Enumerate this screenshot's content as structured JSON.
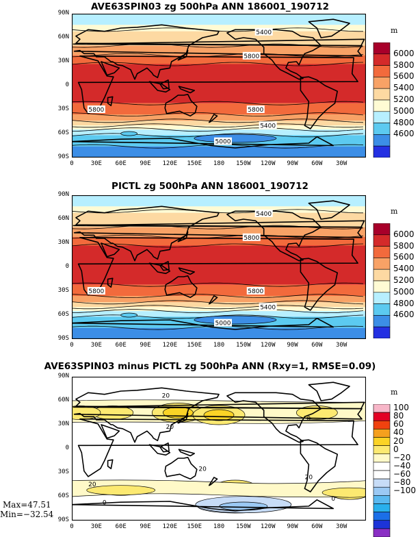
{
  "chart_data": [
    {
      "type": "heatmap",
      "title": "AVE63SPIN03 zg 500hPa ANN 186001_190712",
      "units": "m",
      "x_ticks": [
        "0",
        "30E",
        "60E",
        "90E",
        "120E",
        "150E",
        "180",
        "150W",
        "120W",
        "90W",
        "60W",
        "30W"
      ],
      "y_ticks": [
        "90N",
        "60N",
        "30N",
        "0",
        "30S",
        "60S",
        "90S"
      ],
      "colorbar_levels": [
        "6000",
        "5800",
        "5600",
        "5400",
        "5200",
        "5000",
        "4800",
        "4600"
      ],
      "colorbar_colors": [
        "#a8002a",
        "#d42a2a",
        "#f26a3c",
        "#f8a266",
        "#fdd9a2",
        "#fffbd4",
        "#b7efff",
        "#5ccaf0",
        "#3c8ee6",
        "#2430e2"
      ],
      "contour_labels": [
        "5400",
        "5800",
        "5600",
        "5800",
        "5800",
        "5400",
        "5000"
      ],
      "zonal_band_values": [
        {
          "lat": 80,
          "value": 5250
        },
        {
          "lat": 60,
          "value": 5420
        },
        {
          "lat": 45,
          "value": 5620
        },
        {
          "lat": 30,
          "value": 5800
        },
        {
          "lat": 0,
          "value": 5860
        },
        {
          "lat": -30,
          "value": 5790
        },
        {
          "lat": -45,
          "value": 5560
        },
        {
          "lat": -55,
          "value": 5300
        },
        {
          "lat": -65,
          "value": 5050
        },
        {
          "lat": -80,
          "value": 4900
        }
      ]
    },
    {
      "type": "heatmap",
      "title": "PICTL zg 500hPa ANN 186001_190712",
      "units": "m",
      "x_ticks": [
        "0",
        "30E",
        "60E",
        "90E",
        "120E",
        "150E",
        "180",
        "150W",
        "120W",
        "90W",
        "60W",
        "30W"
      ],
      "y_ticks": [
        "90N",
        "60N",
        "30N",
        "0",
        "30S",
        "60S",
        "90S"
      ],
      "colorbar_levels": [
        "6000",
        "5800",
        "5600",
        "5400",
        "5200",
        "5000",
        "4800",
        "4600"
      ],
      "colorbar_colors": [
        "#a8002a",
        "#d42a2a",
        "#f26a3c",
        "#f8a266",
        "#fdd9a2",
        "#fffbd4",
        "#b7efff",
        "#5ccaf0",
        "#3c8ee6",
        "#2430e2"
      ],
      "contour_labels": [
        "5400",
        "5800",
        "5800",
        "5800",
        "5800",
        "5400",
        "5000"
      ],
      "zonal_band_values": [
        {
          "lat": 80,
          "value": 5250
        },
        {
          "lat": 60,
          "value": 5420
        },
        {
          "lat": 45,
          "value": 5620
        },
        {
          "lat": 30,
          "value": 5800
        },
        {
          "lat": 0,
          "value": 5860
        },
        {
          "lat": -30,
          "value": 5790
        },
        {
          "lat": -45,
          "value": 5560
        },
        {
          "lat": -55,
          "value": 5300
        },
        {
          "lat": -65,
          "value": 5050
        },
        {
          "lat": -80,
          "value": 4900
        }
      ]
    },
    {
      "type": "heatmap",
      "title": "AVE63SPIN03 minus PICTL zg 500hPa ANN (Rxy=1, RMSE=0.09)",
      "units": "m",
      "x_ticks": [
        "0",
        "30E",
        "60E",
        "90E",
        "120E",
        "150E",
        "180",
        "150W",
        "120W",
        "90W",
        "60W",
        "30W"
      ],
      "y_ticks": [
        "90N",
        "60N",
        "30N",
        "0",
        "30S",
        "60S",
        "90S"
      ],
      "colorbar_levels": [
        "100",
        "80",
        "60",
        "40",
        "20",
        "0",
        "−20",
        "−40",
        "−60",
        "−80",
        "−100"
      ],
      "colorbar_colors": [
        "#f7b6c8",
        "#e30024",
        "#f0420f",
        "#f5a01e",
        "#fbd326",
        "#fce971",
        "#fff9c8",
        "#ffffff",
        "#ffffff",
        "#c7dcf7",
        "#9bc9f4",
        "#5ab9f0",
        "#29b0ed",
        "#1b6fe8",
        "#1d34d8",
        "#8a2fc4"
      ],
      "contour_labels": [
        "20",
        "20",
        "0",
        "20",
        "20",
        "20",
        "0",
        "0"
      ],
      "stats": {
        "max": "Max=47.51",
        "min": "Min=−32.54"
      },
      "features": [
        {
          "lon": 50,
          "lat": 45,
          "value": 25
        },
        {
          "lon": 130,
          "lat": 45,
          "value": 35
        },
        {
          "lon": 180,
          "lat": 42,
          "value": 40
        },
        {
          "lon": 10,
          "lat": 45,
          "value": 20
        },
        {
          "lon": 300,
          "lat": 45,
          "value": 20
        },
        {
          "lon": 200,
          "lat": -48,
          "value": 20
        },
        {
          "lon": 60,
          "lat": -50,
          "value": 25
        },
        {
          "lon": 340,
          "lat": -55,
          "value": 25
        },
        {
          "lon": 200,
          "lat": -72,
          "value": -30
        }
      ]
    }
  ]
}
